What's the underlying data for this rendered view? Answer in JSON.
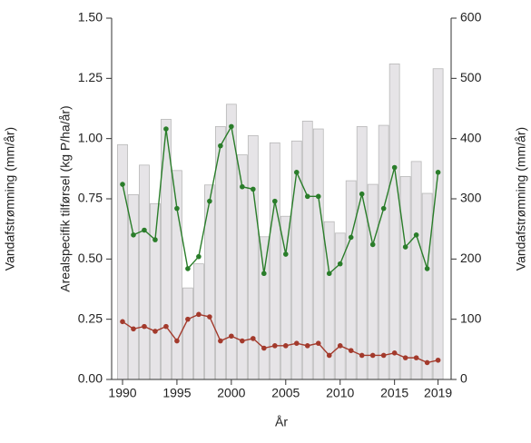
{
  "chart_data": {
    "type": "bar-line",
    "xlabel": "År",
    "ylabel": "Arealspecifik tilførsel (kg P/ha/år)",
    "y2label": "Vandafstrømning (mm/år)",
    "left_edge_label": "Vandafstrømning (mm/år)",
    "x": [
      1990,
      1991,
      1992,
      1993,
      1994,
      1995,
      1996,
      1997,
      1998,
      1999,
      2000,
      2001,
      2002,
      2003,
      2004,
      2005,
      2006,
      2007,
      2008,
      2009,
      2010,
      2011,
      2012,
      2013,
      2014,
      2015,
      2016,
      2017,
      2018,
      2019
    ],
    "xlim": [
      1989,
      2020.2
    ],
    "xticks": [
      1990,
      1995,
      2000,
      2005,
      2010,
      2015,
      2019
    ],
    "ylim": [
      0,
      1.5
    ],
    "yticks": [
      {
        "value": 0,
        "label": "0.00"
      },
      {
        "value": 0.25,
        "label": "0.25"
      },
      {
        "value": 0.5,
        "label": "0.50"
      },
      {
        "value": 0.75,
        "label": "0.75"
      },
      {
        "value": 1,
        "label": "1.00"
      },
      {
        "value": 1.25,
        "label": "1.25"
      },
      {
        "value": 1.5,
        "label": "1.50"
      }
    ],
    "y2lim": [
      0,
      600
    ],
    "y2ticks": [
      0,
      100,
      200,
      300,
      400,
      500,
      600
    ],
    "series": [
      {
        "type": "bar",
        "axis": "y2",
        "color": "#e6e4e7",
        "values": [
          390,
          307,
          356,
          292,
          432,
          347,
          152,
          192,
          323,
          420,
          457,
          373,
          405,
          237,
          393,
          271,
          396,
          429,
          416,
          262,
          243,
          330,
          420,
          324,
          422,
          524,
          337,
          362,
          309,
          516
        ]
      },
      {
        "type": "line",
        "color": "#2a7d2a",
        "values": [
          0.81,
          0.6,
          0.62,
          0.58,
          1.04,
          0.71,
          0.46,
          0.51,
          0.74,
          0.97,
          1.05,
          0.8,
          0.79,
          0.44,
          0.74,
          0.52,
          0.86,
          0.76,
          0.76,
          0.44,
          0.48,
          0.59,
          0.77,
          0.56,
          0.71,
          0.88,
          0.55,
          0.6,
          0.46,
          0.86
        ]
      },
      {
        "type": "line",
        "color": "#a33a2c",
        "values": [
          0.24,
          0.21,
          0.22,
          0.2,
          0.22,
          0.16,
          0.25,
          0.27,
          0.26,
          0.16,
          0.18,
          0.16,
          0.17,
          0.13,
          0.14,
          0.14,
          0.15,
          0.14,
          0.15,
          0.1,
          0.14,
          0.12,
          0.1,
          0.1,
          0.1,
          0.11,
          0.09,
          0.09,
          0.07,
          0.08
        ]
      }
    ]
  }
}
